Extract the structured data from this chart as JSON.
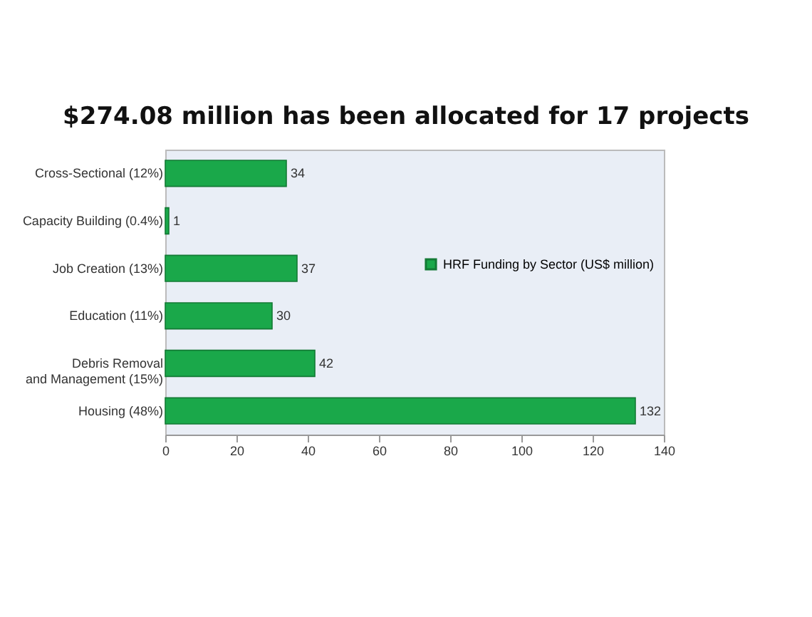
{
  "chart_data": {
    "type": "bar",
    "title": "$274.08 million has been allocated for 17 projects",
    "orientation": "horizontal",
    "categories": [
      "Cross-Sectional (12%)",
      "Capacity Building (0.4%)",
      "Job Creation (13%)",
      "Education (11%)",
      "Debris Removal and Management (15%)",
      "Housing (48%)"
    ],
    "series": [
      {
        "name": "HRF Funding by Sector (US$ million)",
        "color": "#1aa84a",
        "values": [
          34,
          1,
          37,
          30,
          42,
          132
        ]
      }
    ],
    "xlim": [
      0,
      140
    ],
    "xticks": [
      0,
      20,
      40,
      60,
      80,
      100,
      120,
      140
    ],
    "data_labels": true,
    "legend": "right"
  }
}
